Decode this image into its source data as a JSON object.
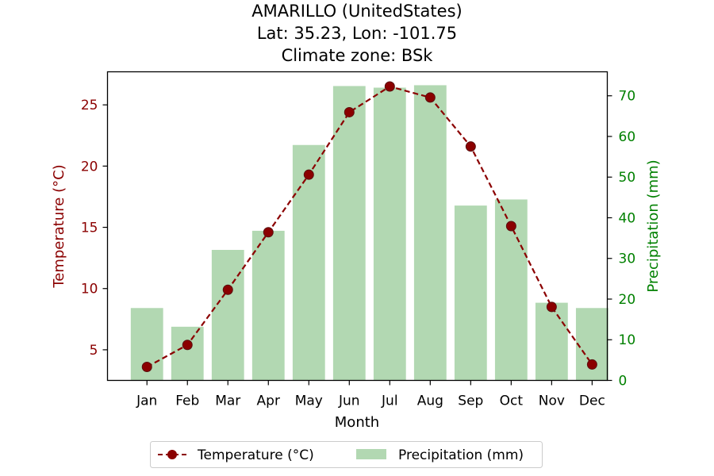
{
  "chart_data": {
    "type": "bar",
    "title_lines": [
      "AMARILLO (UnitedStates)",
      "Lat: 35.23, Lon: -101.75",
      "Climate zone: BSk"
    ],
    "xlabel": "Month",
    "categories": [
      "Jan",
      "Feb",
      "Mar",
      "Apr",
      "May",
      "Jun",
      "Jul",
      "Aug",
      "Sep",
      "Oct",
      "Nov",
      "Dec"
    ],
    "y_left": {
      "label": "Temperature (°C)",
      "ticks": [
        5,
        10,
        15,
        20,
        25
      ],
      "range": [
        2.5,
        27.7
      ],
      "color": "#8b0000"
    },
    "y_right": {
      "label": "Precipitation (mm)",
      "ticks": [
        0,
        10,
        20,
        30,
        40,
        50,
        60,
        70
      ],
      "range": [
        0,
        75.9
      ],
      "color": "#008000"
    },
    "series": [
      {
        "name": "Temperature (°C)",
        "type": "line",
        "axis": "left",
        "style": "dashed-with-circle-markers",
        "color": "#8b0000",
        "values": [
          3.6,
          5.4,
          9.9,
          14.6,
          19.3,
          24.4,
          26.5,
          25.6,
          21.6,
          15.1,
          8.5,
          3.8
        ]
      },
      {
        "name": "Precipitation (mm)",
        "type": "bar",
        "axis": "right",
        "color": "#b2d8b2",
        "values": [
          17.8,
          13.2,
          32.1,
          36.8,
          57.9,
          72.4,
          72.0,
          72.6,
          43.0,
          44.5,
          19.1,
          17.8
        ]
      }
    ],
    "legend": {
      "placement": "bottom-center",
      "entries": [
        "Temperature (°C)",
        "Precipitation (mm)"
      ]
    },
    "grid": false
  }
}
